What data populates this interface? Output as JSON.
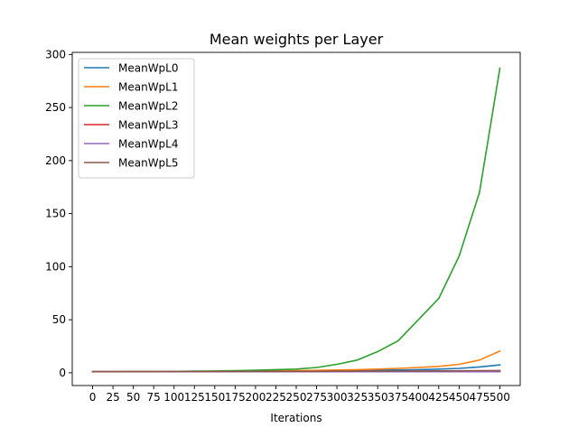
{
  "chart_data": {
    "type": "line",
    "title": "Mean weights per Layer",
    "xlabel": "Iterations",
    "ylabel": "",
    "xlim": [
      -25,
      525
    ],
    "ylim": [
      -12,
      302
    ],
    "xticks": [
      0,
      25,
      50,
      75,
      100,
      125,
      150,
      175,
      200,
      225,
      250,
      275,
      300,
      325,
      350,
      375,
      400,
      425,
      450,
      475,
      500
    ],
    "yticks": [
      0,
      50,
      100,
      150,
      200,
      250,
      300
    ],
    "legend": "top-left",
    "grid": false,
    "x": [
      0,
      25,
      50,
      75,
      100,
      125,
      150,
      175,
      200,
      225,
      250,
      275,
      300,
      325,
      350,
      375,
      400,
      425,
      450,
      475,
      500
    ],
    "series": [
      {
        "name": "MeanWpL0",
        "color": "#1f77b4",
        "values": [
          1.0,
          1.0,
          1.0,
          1.05,
          1.1,
          1.15,
          1.2,
          1.3,
          1.4,
          1.5,
          1.6,
          1.8,
          2.0,
          2.2,
          2.4,
          2.6,
          3.0,
          3.5,
          4.2,
          5.5,
          7.5
        ]
      },
      {
        "name": "MeanWpL1",
        "color": "#ff7f0e",
        "values": [
          1.0,
          1.0,
          1.0,
          1.05,
          1.1,
          1.2,
          1.3,
          1.4,
          1.6,
          1.8,
          2.0,
          2.3,
          2.6,
          3.0,
          3.5,
          4.2,
          5.0,
          6.0,
          8.0,
          12.0,
          20.5
        ]
      },
      {
        "name": "MeanWpL2",
        "color": "#2ca02c",
        "values": [
          1.0,
          1.0,
          1.1,
          1.2,
          1.3,
          1.5,
          1.7,
          2.0,
          2.5,
          3.0,
          3.5,
          5.0,
          8.0,
          12.0,
          20.0,
          30.0,
          50.0,
          70.0,
          110.0,
          170.0,
          287.0
        ]
      },
      {
        "name": "MeanWpL3",
        "color": "#d62728",
        "values": [
          1.0,
          1.0,
          1.0,
          1.0,
          1.0,
          1.0,
          1.0,
          1.0,
          1.0,
          1.0,
          1.0,
          1.0,
          1.0,
          1.0,
          1.0,
          1.0,
          1.0,
          1.0,
          1.0,
          1.0,
          1.0
        ]
      },
      {
        "name": "MeanWpL4",
        "color": "#9467bd",
        "values": [
          1.0,
          1.0,
          1.0,
          1.0,
          1.0,
          1.0,
          1.0,
          1.0,
          1.0,
          1.0,
          1.0,
          1.0,
          1.0,
          1.0,
          1.0,
          1.0,
          1.0,
          1.0,
          1.0,
          1.0,
          1.0
        ]
      },
      {
        "name": "MeanWpL5",
        "color": "#8c564b",
        "values": [
          1.0,
          1.0,
          1.0,
          1.05,
          1.1,
          1.1,
          1.2,
          1.2,
          1.3,
          1.3,
          1.4,
          1.4,
          1.5,
          1.5,
          1.6,
          1.6,
          1.7,
          1.8,
          1.9,
          2.0,
          2.1
        ]
      }
    ]
  }
}
